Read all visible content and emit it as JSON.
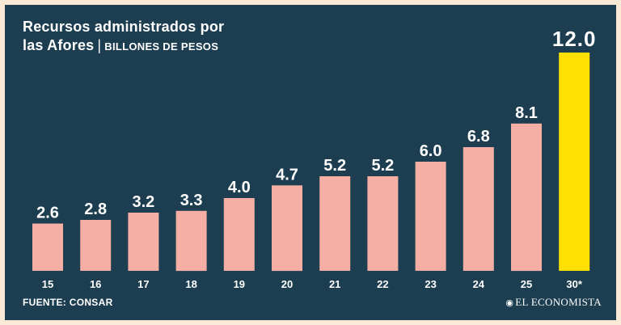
{
  "header": {
    "title_line1": "Recursos administrados por",
    "title_line2": "las Afores",
    "separator": "|",
    "unit": "BILLONES DE PESOS"
  },
  "footer": {
    "source": "FUENTE: CONSAR",
    "brand": "EL ECONOMISTA",
    "brand_icon": "globe-logo-icon"
  },
  "colors": {
    "background": "#1c3e50",
    "bar": "#f4aea3",
    "highlight_bar": "#ffe000",
    "text": "#ffffff",
    "outer_border": "#fbe9d8"
  },
  "chart_data": {
    "type": "bar",
    "categories": [
      "15",
      "16",
      "17",
      "18",
      "19",
      "20",
      "21",
      "22",
      "23",
      "24",
      "25",
      "30*"
    ],
    "values": [
      2.6,
      2.8,
      3.2,
      3.3,
      4.0,
      4.7,
      5.2,
      5.2,
      6.0,
      6.8,
      8.1,
      12.0
    ],
    "value_labels": [
      "2.6",
      "2.8",
      "3.2",
      "3.3",
      "4.0",
      "4.7",
      "5.2",
      "5.2",
      "6.0",
      "6.8",
      "8.1",
      "12.0"
    ],
    "highlight_index": 11,
    "title": "Recursos administrados por las Afores",
    "ylabel": "",
    "xlabel": "",
    "ylim": [
      0,
      12
    ],
    "grid": false,
    "legend": "none"
  }
}
